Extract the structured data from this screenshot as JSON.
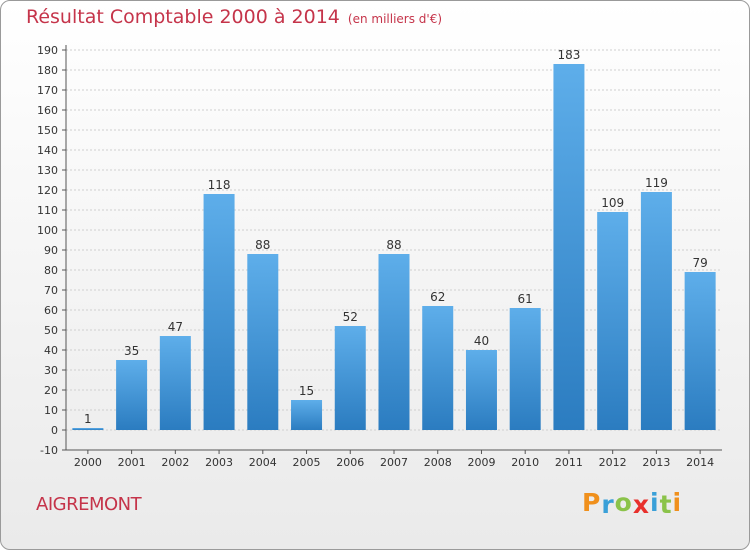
{
  "header": {
    "title": "Résultat Comptable 2000 à 2014",
    "subtitle": "(en milliers d'€)"
  },
  "commune": "AIGREMONT",
  "logo": {
    "text": "Proxiti",
    "letters": [
      {
        "ch": "P",
        "color": "#f0901c"
      },
      {
        "ch": "r",
        "color": "#3aa0d8"
      },
      {
        "ch": "o",
        "color": "#8bc34a"
      },
      {
        "ch": "x",
        "color": "#e8302c"
      },
      {
        "ch": "i",
        "color": "#3aa0d8"
      },
      {
        "ch": "t",
        "color": "#8bc34a"
      },
      {
        "ch": "i",
        "color": "#f0901c"
      }
    ]
  },
  "colors": {
    "title": "#c5344a",
    "bar_top": "#5eaeea",
    "bar_bottom": "#2b7cc0",
    "grid": "#cfcfcf",
    "axis": "#555555"
  },
  "chart_data": {
    "type": "bar",
    "title": "Résultat Comptable 2000 à 2014",
    "xlabel": "",
    "ylabel": "",
    "categories": [
      "2000",
      "2001",
      "2002",
      "2003",
      "2004",
      "2005",
      "2006",
      "2007",
      "2008",
      "2009",
      "2010",
      "2011",
      "2012",
      "2013",
      "2014"
    ],
    "values": [
      1,
      35,
      47,
      118,
      88,
      15,
      52,
      88,
      62,
      40,
      61,
      183,
      109,
      119,
      79
    ],
    "ylim": [
      -10,
      190
    ],
    "yticks": [
      -10,
      0,
      10,
      20,
      30,
      40,
      50,
      60,
      70,
      80,
      90,
      100,
      110,
      120,
      130,
      140,
      150,
      160,
      170,
      180,
      190
    ],
    "grid": true
  }
}
